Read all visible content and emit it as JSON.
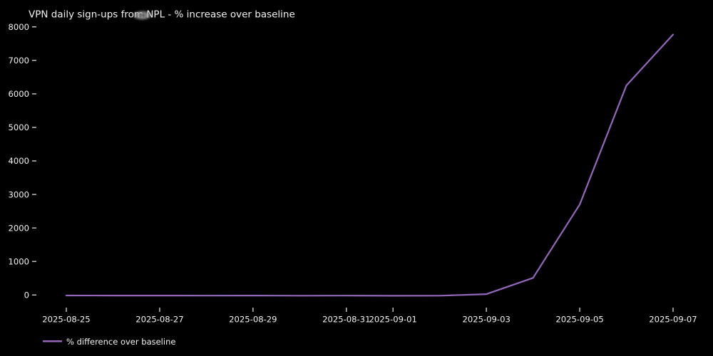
{
  "figure": {
    "background_color": "#000000",
    "text_color": "#f2f2f2",
    "tick_mark_color": "#cccccc"
  },
  "chart_data": {
    "type": "line",
    "title": "VPN daily sign-ups from NPL - % increase over baseline",
    "x": [
      "2025-08-25",
      "2025-08-26",
      "2025-08-27",
      "2025-08-28",
      "2025-08-29",
      "2025-08-30",
      "2025-08-31",
      "2025-09-01",
      "2025-09-02",
      "2025-09-03",
      "2025-09-04",
      "2025-09-05",
      "2025-09-06",
      "2025-09-07"
    ],
    "series": [
      {
        "name": "% difference over baseline",
        "color": "#9467bd",
        "values": [
          -15,
          -18,
          -16,
          -20,
          -18,
          -22,
          -20,
          -24,
          -22,
          25,
          510,
          2700,
          6250,
          7770
        ]
      }
    ],
    "x_tick_labels": [
      "2025-08-25",
      "2025-08-27",
      "2025-08-29",
      "2025-08-31",
      "2025-09-01",
      "2025-09-03",
      "2025-09-05",
      "2025-09-07"
    ],
    "y_ticks": [
      0,
      1000,
      2000,
      3000,
      4000,
      5000,
      6000,
      7000,
      8000
    ],
    "ylim": [
      0,
      8000
    ],
    "xlabel": "",
    "ylabel": "",
    "grid": false,
    "legend_position": "bottom-left-below-axis",
    "background": "#000000"
  }
}
